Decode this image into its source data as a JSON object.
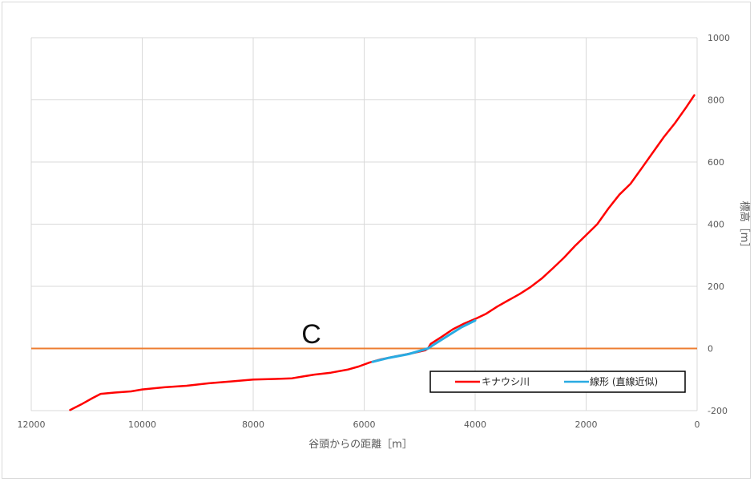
{
  "chart_data": {
    "type": "line",
    "xlabel": "谷頭からの距離［m］",
    "ylabel": "標高［m］",
    "xlim": [
      12000,
      0
    ],
    "ylim": [
      -200,
      1000
    ],
    "x_ticks": [
      12000,
      10000,
      8000,
      6000,
      4000,
      2000,
      0
    ],
    "y_ticks": [
      -200,
      0,
      200,
      400,
      600,
      800,
      1000
    ],
    "x_reversed": true,
    "y_axis_side": "right",
    "grid": true,
    "annotation": {
      "text": "C",
      "x": 7000,
      "y": 50
    },
    "reference_line": {
      "y": 0,
      "color": "#ed7d31"
    },
    "legend": {
      "position": "bottom-right"
    },
    "series": [
      {
        "name": "キナウシ川",
        "color": "#ff0000",
        "points": [
          [
            11300,
            -198
          ],
          [
            11100,
            -180
          ],
          [
            10900,
            -160
          ],
          [
            10750,
            -146
          ],
          [
            10500,
            -142
          ],
          [
            10200,
            -138
          ],
          [
            10000,
            -132
          ],
          [
            9600,
            -125
          ],
          [
            9200,
            -120
          ],
          [
            8800,
            -112
          ],
          [
            8400,
            -106
          ],
          [
            8000,
            -100
          ],
          [
            7600,
            -98
          ],
          [
            7300,
            -96
          ],
          [
            7100,
            -90
          ],
          [
            6900,
            -84
          ],
          [
            6600,
            -78
          ],
          [
            6300,
            -68
          ],
          [
            6100,
            -58
          ],
          [
            5900,
            -45
          ],
          [
            5700,
            -35
          ],
          [
            5400,
            -24
          ],
          [
            5100,
            -14
          ],
          [
            4900,
            -6
          ],
          [
            4850,
            0
          ],
          [
            4800,
            15
          ],
          [
            4600,
            38
          ],
          [
            4400,
            62
          ],
          [
            4200,
            80
          ],
          [
            4000,
            95
          ],
          [
            3800,
            112
          ],
          [
            3600,
            135
          ],
          [
            3400,
            155
          ],
          [
            3200,
            175
          ],
          [
            3000,
            198
          ],
          [
            2800,
            225
          ],
          [
            2600,
            258
          ],
          [
            2400,
            292
          ],
          [
            2200,
            330
          ],
          [
            2000,
            365
          ],
          [
            1800,
            400
          ],
          [
            1600,
            450
          ],
          [
            1400,
            495
          ],
          [
            1200,
            530
          ],
          [
            1000,
            580
          ],
          [
            800,
            630
          ],
          [
            600,
            680
          ],
          [
            400,
            725
          ],
          [
            200,
            775
          ],
          [
            50,
            815
          ]
        ]
      },
      {
        "name": "線形 (直線近似)",
        "color": "#29abe2",
        "points": [
          [
            5850,
            -43
          ],
          [
            5550,
            -30
          ],
          [
            5200,
            -18
          ],
          [
            4850,
            0
          ],
          [
            4750,
            12
          ],
          [
            4500,
            40
          ],
          [
            4250,
            68
          ],
          [
            4000,
            90
          ]
        ]
      }
    ]
  }
}
